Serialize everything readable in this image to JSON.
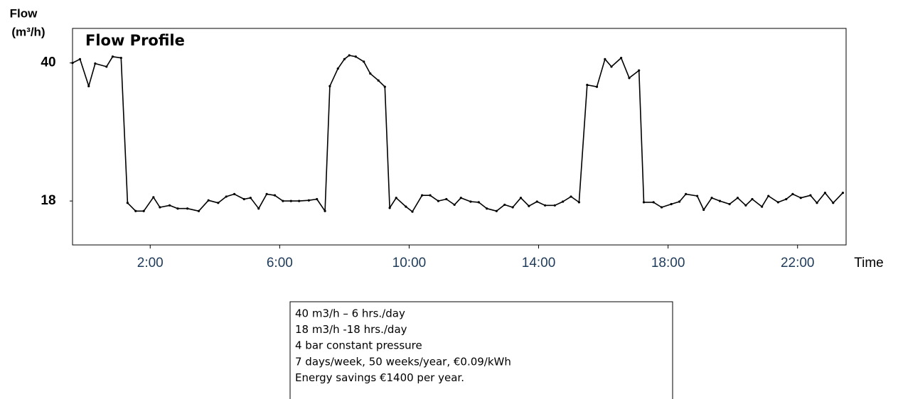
{
  "chart_data": {
    "type": "line",
    "title": "Flow Profile",
    "y_label": [
      "Flow",
      "(m³/h)"
    ],
    "x_label": "Time",
    "color": "#000000",
    "grid": false,
    "xlim": [
      -0.4,
      23.5
    ],
    "ylim": [
      11,
      45.5
    ],
    "xticks": [
      {
        "value": 2,
        "label": "2:00"
      },
      {
        "value": 6,
        "label": "6:00"
      },
      {
        "value": 10,
        "label": "10:00"
      },
      {
        "value": 14,
        "label": "14:00"
      },
      {
        "value": 18,
        "label": "18:00"
      },
      {
        "value": 22,
        "label": "22:00"
      }
    ],
    "yticks": [
      18,
      40
    ],
    "x": [
      -0.4,
      -0.17,
      0.1,
      0.3,
      0.65,
      0.84,
      1.1,
      1.3,
      1.55,
      1.8,
      2.1,
      2.3,
      2.6,
      2.85,
      3.15,
      3.5,
      3.8,
      4.1,
      4.35,
      4.6,
      4.9,
      5.1,
      5.35,
      5.6,
      5.85,
      6.1,
      6.35,
      6.6,
      6.9,
      7.15,
      7.4,
      7.55,
      7.8,
      8.0,
      8.15,
      8.35,
      8.6,
      8.8,
      9.05,
      9.25,
      9.4,
      9.6,
      9.9,
      10.1,
      10.4,
      10.65,
      10.9,
      11.15,
      11.4,
      11.6,
      11.9,
      12.15,
      12.4,
      12.7,
      12.95,
      13.2,
      13.45,
      13.7,
      13.95,
      14.2,
      14.5,
      14.75,
      15.0,
      15.25,
      15.5,
      15.8,
      16.05,
      16.25,
      16.55,
      16.8,
      17.1,
      17.25,
      17.55,
      17.8,
      18.1,
      18.35,
      18.55,
      18.9,
      19.1,
      19.35,
      19.6,
      19.9,
      20.15,
      20.4,
      20.6,
      20.9,
      21.1,
      21.4,
      21.65,
      21.85,
      22.1,
      22.4,
      22.6,
      22.85,
      23.1,
      23.4
    ],
    "values": [
      40,
      40.6,
      36.3,
      39.9,
      39.4,
      41,
      40.8,
      17.7,
      16.4,
      16.4,
      18.6,
      17,
      17.3,
      16.8,
      16.8,
      16.4,
      18.1,
      17.7,
      18.7,
      19.1,
      18.3,
      18.5,
      16.8,
      19.1,
      18.9,
      18,
      18,
      18,
      18.1,
      18.3,
      16.4,
      36.3,
      39.1,
      40.6,
      41.2,
      41,
      40.2,
      38.3,
      37.2,
      36.2,
      16.9,
      18.5,
      17.1,
      16.3,
      18.9,
      18.9,
      18,
      18.3,
      17.4,
      18.5,
      17.9,
      17.8,
      16.8,
      16.4,
      17.4,
      17,
      18.5,
      17.2,
      17.9,
      17.3,
      17.3,
      17.9,
      18.7,
      17.8,
      36.5,
      36.2,
      40.6,
      39.4,
      40.8,
      37.6,
      38.8,
      17.8,
      17.8,
      17,
      17.5,
      17.9,
      19.1,
      18.8,
      16.6,
      18.5,
      18,
      17.5,
      18.5,
      17.3,
      18.3,
      17.1,
      18.8,
      17.8,
      18.3,
      19.1,
      18.5,
      18.9,
      17.7,
      19.3,
      17.7,
      19.3
    ],
    "annotations": [
      "40 m3/h – 6 hrs./day",
      "18 m3/h -18 hrs./day",
      "4 bar constant pressure",
      "7 days/week, 50 weeks/year, €0.09/kWh",
      "Energy savings €1400 per year."
    ]
  }
}
